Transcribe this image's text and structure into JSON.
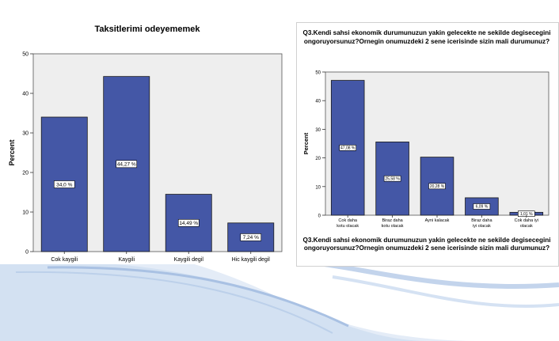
{
  "colors": {
    "bar": "#4457a6",
    "bar_stroke": "#1a1a1a",
    "plot_bg": "#eeeeee",
    "swoosh": "#c9d9ee"
  },
  "chart_data": [
    {
      "type": "bar",
      "title": "Taksitlerimi odeyememek",
      "xlabel": "",
      "ylabel": "Percent",
      "ylim": [
        0,
        50
      ],
      "yticks": [
        0,
        10,
        20,
        30,
        40,
        50
      ],
      "categories": [
        "Cok kaygili",
        "Kaygili",
        "Kaygili degil",
        "Hic kaygili degil"
      ],
      "values": [
        34.0,
        44.27,
        14.49,
        7.24
      ],
      "data_labels": [
        "34,0 %",
        "44,27 %",
        "14,49 %",
        "7,24 %"
      ],
      "grid": false
    },
    {
      "type": "bar",
      "title": "Q3.Kendi sahsi ekonomik durumunuzun yakin gelecekte ne sekilde degisecegini ongoruyorsunuz?Ornegin onumuzdeki 2 sene icerisinde sizin mali durumunuz?",
      "xlabel": "Q3.Kendi sahsi ekonomik durumunuzun yakin gelecekte ne sekilde degisecegini ongoruyorsunuz?Ornegin onumuzdeki 2 sene icerisinde sizin mali durumunuz?",
      "ylabel": "Percent",
      "ylim": [
        0,
        50
      ],
      "yticks": [
        0,
        10,
        20,
        30,
        40,
        50
      ],
      "categories": [
        "Cok daha kotu olacak",
        "Biraz daha kotu olacak",
        "Ayni kalacak",
        "Biraz daha iyi olacak",
        "Cok daha iyi olacak"
      ],
      "values": [
        47.08,
        25.58,
        20.28,
        6.09,
        1.01
      ],
      "data_labels": [
        "47,08 %",
        "25,58 %",
        "20,28 %",
        "6,09 %",
        "1,01 %"
      ],
      "grid": false
    }
  ]
}
